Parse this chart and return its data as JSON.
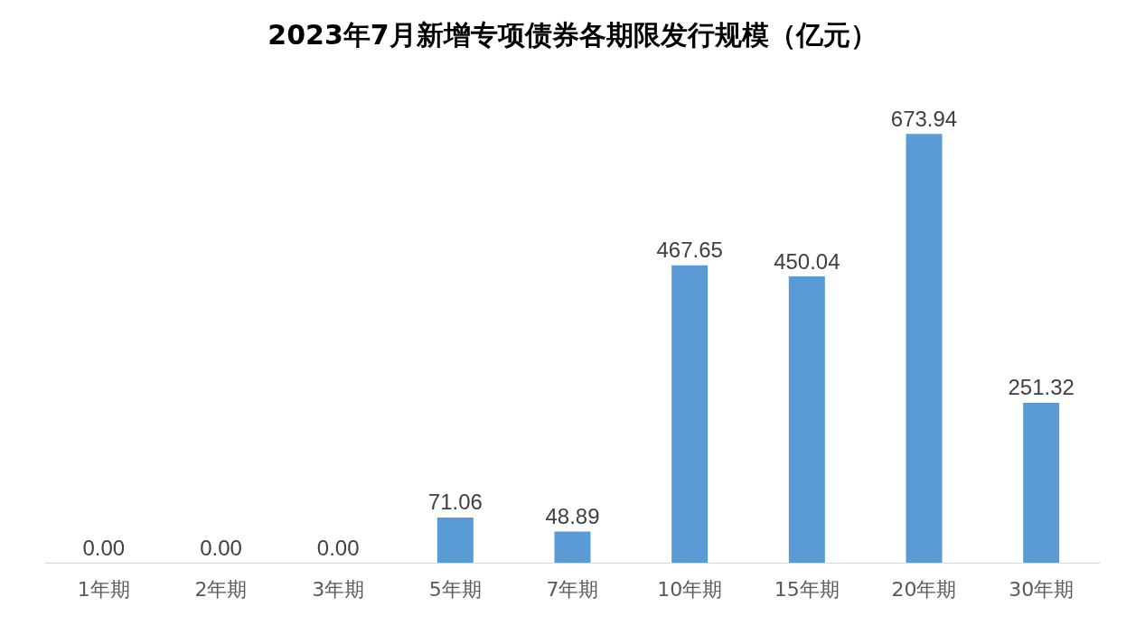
{
  "chart_data": {
    "type": "bar",
    "title": "2023年7月新增专项债券各期限发行规模（亿元）",
    "categories": [
      "1年期",
      "2年期",
      "3年期",
      "5年期",
      "7年期",
      "10年期",
      "15年期",
      "20年期",
      "30年期"
    ],
    "values": [
      0,
      0,
      0,
      71.06,
      48.89,
      467.65,
      450.04,
      673.94,
      251.32
    ],
    "value_labels": [
      "0.00",
      "0.00",
      "0.00",
      "71.06",
      "48.89",
      "467.65",
      "450.04",
      "673.94",
      "251.32"
    ],
    "color": "#5b9bd5"
  }
}
